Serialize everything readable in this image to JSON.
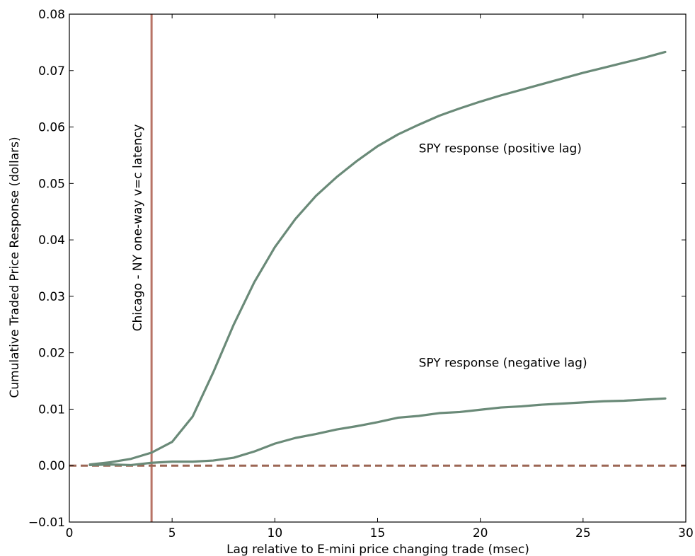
{
  "chart_data": {
    "type": "line",
    "title": "",
    "xlabel": "Lag relative to E-mini price changing trade (msec)",
    "ylabel": "Cumulative Traded Price Response (dollars)",
    "xlim": [
      0,
      30
    ],
    "ylim": [
      -0.01,
      0.08
    ],
    "grid": false,
    "x_ticks": [
      "0",
      "5",
      "10",
      "15",
      "20",
      "25",
      "30"
    ],
    "y_ticks": [
      "−0.01",
      "0.00",
      "0.01",
      "0.02",
      "0.03",
      "0.04",
      "0.05",
      "0.06",
      "0.07",
      "0.08"
    ],
    "x_tick_values": [
      0,
      5,
      10,
      15,
      20,
      25,
      30
    ],
    "y_tick_values": [
      -0.01,
      0,
      0.01,
      0.02,
      0.03,
      0.04,
      0.05,
      0.06,
      0.07,
      0.08
    ],
    "x": [
      1,
      2,
      3,
      4,
      5,
      6,
      7,
      8,
      9,
      10,
      11,
      12,
      13,
      14,
      15,
      16,
      17,
      18,
      19,
      20,
      21,
      22,
      23,
      24,
      25,
      26,
      27,
      28,
      29
    ],
    "series": [
      {
        "name": "SPY response (positive lag)",
        "color": "#6a8a78",
        "values": [
          0.0002,
          0.0006,
          0.0012,
          0.0023,
          0.0042,
          0.0087,
          0.0165,
          0.025,
          0.0325,
          0.0387,
          0.0437,
          0.0478,
          0.0511,
          0.054,
          0.0566,
          0.0587,
          0.0604,
          0.062,
          0.0633,
          0.0645,
          0.0656,
          0.0666,
          0.0676,
          0.0686,
          0.0696,
          0.0705,
          0.0714,
          0.0723,
          0.0733
        ]
      },
      {
        "name": "SPY response (negative lag)",
        "color": "#6a8a78",
        "values": [
          0.0001,
          0.0002,
          0.0001,
          0.0005,
          0.0007,
          0.0007,
          0.0009,
          0.0014,
          0.0025,
          0.0039,
          0.0049,
          0.0056,
          0.0064,
          0.007,
          0.0077,
          0.0085,
          0.0088,
          0.0093,
          0.0095,
          0.0099,
          0.0103,
          0.0105,
          0.0108,
          0.011,
          0.0112,
          0.0114,
          0.0115,
          0.0117,
          0.0119
        ]
      }
    ],
    "reference_lines": [
      {
        "orientation": "vertical",
        "value": 4,
        "style": "solid",
        "color": "#b87366",
        "label": "Chicago - NY one-way v=c latency"
      },
      {
        "orientation": "horizontal",
        "value": 0,
        "style": "dashed",
        "color": "#9c6654"
      }
    ],
    "annotations": [
      {
        "text": "SPY response (positive lag)",
        "x": 17,
        "y": 0.0555
      },
      {
        "text": "SPY response (negative lag)",
        "x": 17,
        "y": 0.0175
      }
    ]
  }
}
